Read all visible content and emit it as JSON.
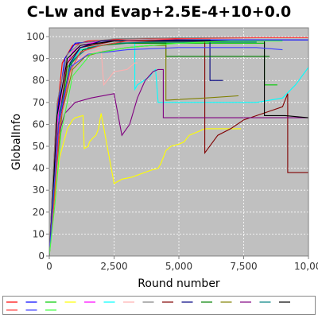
{
  "chart_data": {
    "type": "line",
    "title": "C-Lw and Evap+2.5E-4+10+0.0",
    "xlabel": "Round number",
    "ylabel": "GlobalInfo",
    "xlim": [
      0,
      10000
    ],
    "ylim": [
      0,
      104
    ],
    "x_ticks": [
      "0",
      "2,500",
      "5,000",
      "7,500",
      "10,00"
    ],
    "y_ticks": [
      "0",
      "10",
      "20",
      "30",
      "40",
      "50",
      "60",
      "70",
      "80",
      "90",
      "100"
    ],
    "plot_background": "#c0c0c0",
    "grid": true,
    "legend": "bottom",
    "series": [
      {
        "color": "#ff0000",
        "x": [
          0,
          100,
          250,
          500,
          900,
          1500,
          3000,
          6000,
          10000
        ],
        "y": [
          0,
          25,
          60,
          88,
          96,
          98,
          99,
          99.5,
          99.5
        ]
      },
      {
        "color": "#0000ff",
        "x": [
          0,
          120,
          300,
          600,
          1000,
          2000,
          5000,
          10000
        ],
        "y": [
          0,
          28,
          65,
          90,
          97,
          98,
          98.5,
          98.5
        ]
      },
      {
        "color": "#00cc00",
        "x": [
          0,
          150,
          350,
          700,
          1200,
          2500,
          6000,
          8300,
          8300,
          8800
        ],
        "y": [
          0,
          22,
          58,
          86,
          94,
          97,
          97,
          97,
          78,
          78
        ]
      },
      {
        "color": "#ffff00",
        "x": [
          0,
          200,
          400,
          700,
          900,
          1000,
          1300,
          1350,
          1500,
          1550,
          1700,
          1800,
          1900,
          2000,
          2500,
          2800,
          3200,
          3900,
          4200,
          4300,
          4500,
          4700,
          5000,
          5200,
          5400,
          5600,
          5800,
          6000,
          6500,
          7000,
          7400
        ],
        "y": [
          0,
          25,
          45,
          58,
          62,
          63,
          64,
          49,
          50,
          52,
          54,
          55,
          58,
          65,
          33,
          35,
          36,
          39,
          40,
          42,
          48,
          50,
          51,
          52,
          55,
          56,
          57,
          58,
          58,
          58,
          58
        ]
      },
      {
        "color": "#ff00ff",
        "x": [
          0,
          150,
          300,
          600,
          900,
          1200,
          2000,
          4000,
          6000
        ],
        "y": [
          0,
          28,
          60,
          85,
          93,
          96,
          98,
          98,
          98
        ]
      },
      {
        "color": "#00ffff",
        "x": [
          0,
          200,
          400,
          800,
          1200,
          2000,
          3000,
          3300,
          3300,
          3400,
          3900,
          4000,
          4100,
          4200,
          8000,
          9000,
          9500,
          10000
        ],
        "y": [
          0,
          30,
          62,
          88,
          94,
          96,
          97,
          97,
          76,
          78,
          82,
          84,
          85,
          70,
          70,
          72,
          78,
          86
        ]
      },
      {
        "color": "#ffafaf",
        "x": [
          0,
          200,
          500,
          900,
          1400,
          2000,
          2100,
          2500,
          3000,
          3300,
          3400
        ],
        "y": [
          0,
          30,
          70,
          87,
          92,
          94,
          78,
          84,
          85,
          88,
          88
        ]
      },
      {
        "color": "#808080",
        "x": [
          0,
          120,
          300,
          700,
          1200,
          2500,
          5000,
          10000
        ],
        "y": [
          0,
          30,
          70,
          92,
          97,
          99,
          99.5,
          99.5
        ]
      },
      {
        "color": "#800000",
        "x": [
          0,
          150,
          350,
          700,
          1200,
          2500,
          5500,
          6000,
          6000,
          6500,
          7000,
          7500,
          8000,
          8500,
          9000,
          9200,
          9200,
          10000
        ],
        "y": [
          0,
          25,
          60,
          88,
          95,
          98,
          98,
          98,
          47,
          55,
          58,
          62,
          64,
          66,
          68,
          74,
          38,
          38
        ]
      },
      {
        "color": "#000080",
        "x": [
          0,
          150,
          400,
          800,
          1200,
          2000,
          4000,
          6000,
          6200,
          6200,
          6700
        ],
        "y": [
          0,
          26,
          60,
          88,
          95,
          98,
          98.5,
          98.5,
          98.5,
          80,
          80
        ]
      },
      {
        "color": "#008000",
        "x": [
          0,
          180,
          400,
          800,
          1300,
          2000,
          3000,
          4500,
          4500,
          7000,
          8500
        ],
        "y": [
          0,
          28,
          64,
          87,
          94,
          96,
          97,
          97,
          91,
          91,
          91
        ]
      },
      {
        "color": "#808000",
        "x": [
          0,
          200,
          500,
          900,
          1400,
          2000,
          3000,
          4000,
          4500,
          4500,
          6000,
          7300
        ],
        "y": [
          0,
          30,
          66,
          85,
          91,
          93,
          95,
          96,
          96,
          71,
          72,
          73
        ]
      },
      {
        "color": "#800080",
        "x": [
          0,
          150,
          350,
          600,
          1000,
          1600,
          2500,
          2800,
          3100,
          3400,
          3700,
          4000,
          4200,
          4400,
          4400,
          5000,
          7000,
          10000
        ],
        "y": [
          0,
          30,
          55,
          65,
          70,
          72,
          74,
          55,
          60,
          72,
          80,
          84,
          85,
          85,
          63,
          63,
          63,
          63
        ]
      },
      {
        "color": "#008080",
        "x": [
          0,
          180,
          400,
          900,
          1500,
          2500,
          4000,
          6000,
          7500,
          8000
        ],
        "y": [
          0,
          30,
          66,
          89,
          95,
          97,
          97.5,
          97.5,
          97.5,
          97.5
        ]
      },
      {
        "color": "#000000",
        "x": [
          0,
          150,
          300,
          700,
          1200,
          2500,
          5000,
          8000,
          8300,
          8300,
          8700,
          9100,
          10000
        ],
        "y": [
          0,
          30,
          64,
          90,
          96,
          98,
          98,
          98,
          98,
          64,
          64,
          64,
          63
        ]
      },
      {
        "color": "#ff4040",
        "x": [
          0,
          200,
          400,
          800,
          1200,
          2000,
          3000,
          5000,
          8000,
          10000
        ],
        "y": [
          0,
          26,
          60,
          84,
          93,
          96,
          98,
          99,
          99.5,
          99.5
        ]
      },
      {
        "color": "#4040ff",
        "x": [
          0,
          160,
          380,
          800,
          1500,
          3000,
          5000,
          7000,
          8000,
          9000
        ],
        "y": [
          0,
          28,
          62,
          86,
          92,
          94,
          95,
          95,
          95,
          94
        ]
      },
      {
        "color": "#40ff40",
        "x": [
          0,
          220,
          450,
          900,
          1600,
          3000,
          5000,
          7000,
          8500,
          9000
        ],
        "y": [
          0,
          24,
          56,
          82,
          92,
          95,
          97,
          98,
          98,
          98
        ]
      }
    ]
  }
}
